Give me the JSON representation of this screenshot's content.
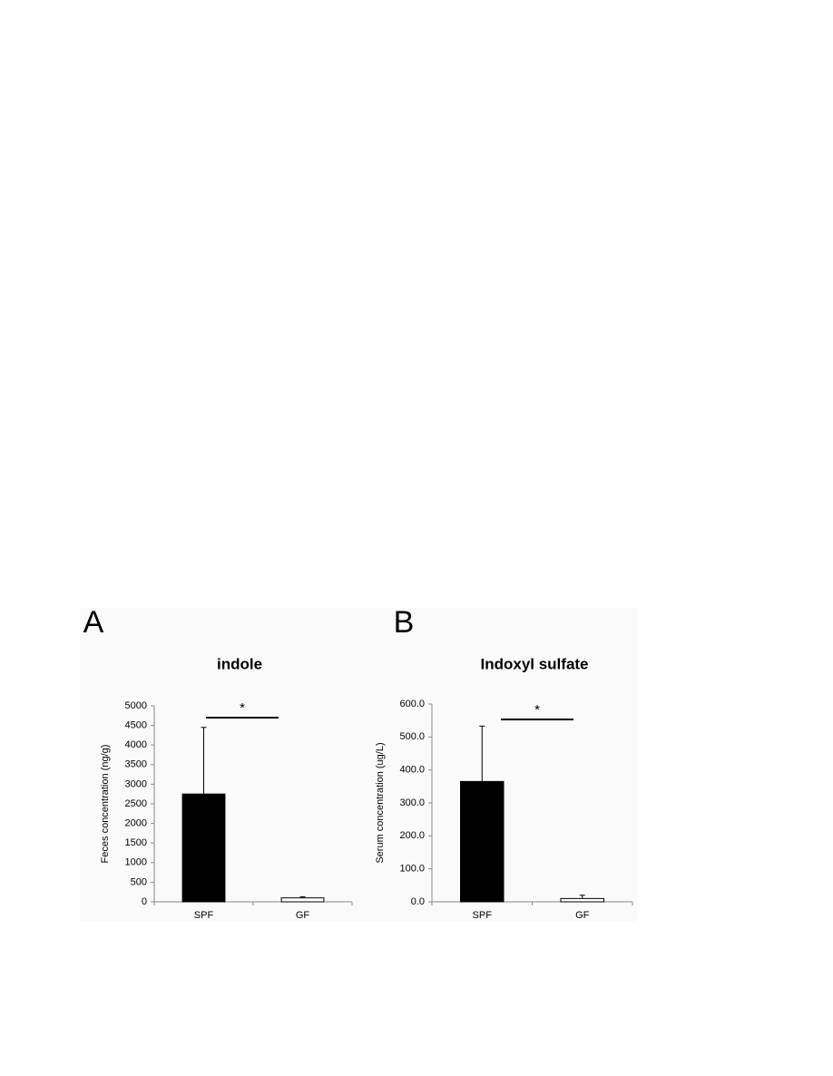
{
  "chart_data": [
    {
      "type": "bar",
      "panel": "A",
      "title": "indole",
      "y_label": "Feces concentration (ng/g)",
      "categories": [
        "SPF",
        "GF"
      ],
      "values": [
        2750,
        100
      ],
      "errors": [
        1700,
        30
      ],
      "colors": [
        "#000000",
        "#ffffff"
      ],
      "annotation": "*",
      "ylim": [
        0,
        5000
      ],
      "yticks": [
        0,
        500,
        1000,
        1500,
        2000,
        2500,
        3000,
        3500,
        4000,
        4500,
        5000
      ]
    },
    {
      "type": "bar",
      "panel": "B",
      "title": "Indoxyl sulfate",
      "y_label": "Serum concentration (ug/L)",
      "categories": [
        "SPF",
        "GF"
      ],
      "values": [
        365,
        10
      ],
      "errors": [
        168,
        10
      ],
      "colors": [
        "#000000",
        "#ffffff"
      ],
      "annotation": "*",
      "ylim": [
        0,
        600
      ],
      "yticks": [
        {
          "value": 0,
          "label": "0.0"
        },
        {
          "value": 100,
          "label": "100.0"
        },
        {
          "value": 200,
          "label": "200.0"
        },
        {
          "value": 300,
          "label": "300.0"
        },
        {
          "value": 400,
          "label": "400.0"
        },
        {
          "value": 500,
          "label": "500.0"
        },
        {
          "value": 600,
          "label": "600.0"
        }
      ]
    }
  ]
}
